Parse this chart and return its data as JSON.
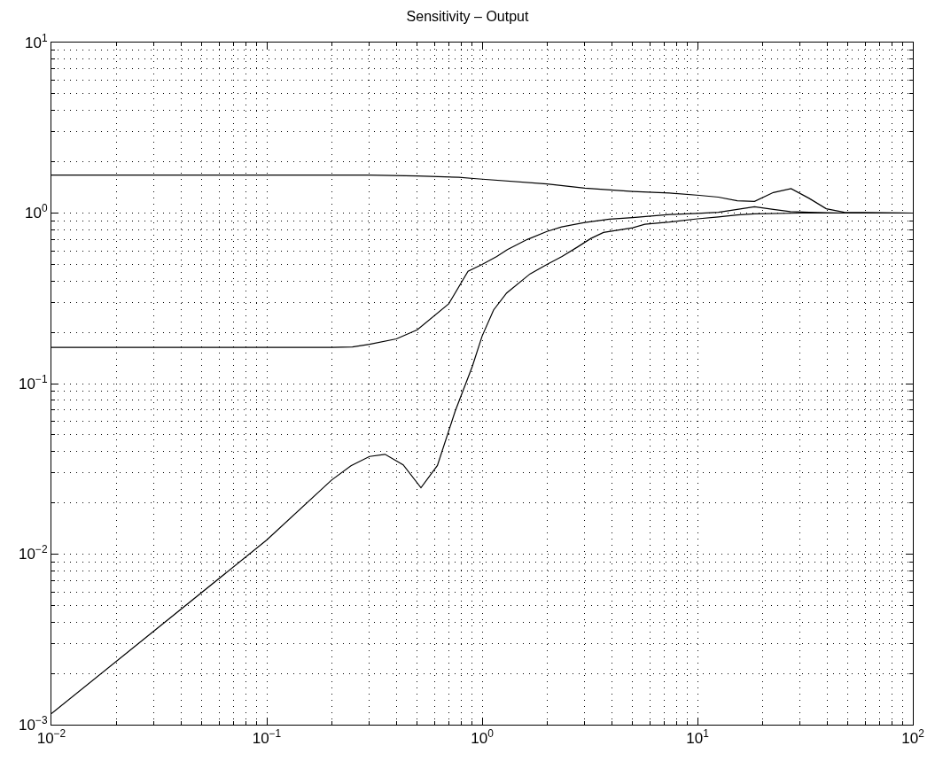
{
  "chart_data": {
    "type": "line",
    "title": "Sensitivity – Output",
    "series": [
      {
        "color": "#000000",
        "x": [
          0.01,
          0.1,
          0.3,
          0.5,
          0.78,
          0.94,
          2,
          3,
          5,
          7.4,
          10.2,
          12.5,
          15.3,
          18.4,
          22.5,
          27.2,
          33,
          39.6,
          48,
          100
        ],
        "values": [
          1.67,
          1.67,
          1.67,
          1.65,
          1.62,
          1.59,
          1.48,
          1.4,
          1.34,
          1.31,
          1.27,
          1.24,
          1.18,
          1.17,
          1.32,
          1.39,
          1.22,
          1.06,
          1.01,
          1.0
        ]
      },
      {
        "color": "#000000",
        "x": [
          0.01,
          0.1,
          0.2,
          0.25,
          0.3,
          0.4,
          0.5,
          0.7,
          0.86,
          1.0,
          1.17,
          1.31,
          1.62,
          2,
          2.34,
          3,
          3.9,
          5,
          7.4,
          10,
          12.5,
          15.3,
          18.4,
          22.5,
          27,
          33,
          48,
          100
        ],
        "values": [
          0.163,
          0.163,
          0.163,
          0.164,
          0.17,
          0.183,
          0.207,
          0.294,
          0.456,
          0.5,
          0.556,
          0.61,
          0.7,
          0.78,
          0.83,
          0.88,
          0.92,
          0.94,
          0.98,
          0.995,
          1.01,
          1.05,
          1.09,
          1.05,
          1.02,
          1.01,
          1.0,
          1.0
        ]
      },
      {
        "color": "#000000",
        "x": [
          0.01,
          0.1,
          0.2,
          0.246,
          0.3,
          0.354,
          0.43,
          0.52,
          0.62,
          0.75,
          0.9,
          1.0,
          1.13,
          1.3,
          1.67,
          2,
          2.35,
          2.76,
          3.2,
          3.66,
          5,
          5.7,
          7.4,
          10,
          12.5,
          15.3,
          18.4,
          30,
          100
        ],
        "values": [
          0.00116,
          0.0121,
          0.0272,
          0.033,
          0.0374,
          0.0385,
          0.0334,
          0.0245,
          0.0331,
          0.069,
          0.126,
          0.19,
          0.27,
          0.34,
          0.44,
          0.5,
          0.556,
          0.63,
          0.71,
          0.77,
          0.82,
          0.86,
          0.885,
          0.925,
          0.95,
          0.975,
          0.99,
          1.0,
          1.0
        ]
      }
    ],
    "log": "xy",
    "xlim": [
      0.01,
      100
    ],
    "ylim": [
      0.001,
      10
    ],
    "xticks": [
      {
        "value": 0.01,
        "label": "10$^{−2}$"
      },
      {
        "value": 0.1,
        "label": "10$^{−1}$"
      },
      {
        "value": 1,
        "label": "10$^{0}$"
      },
      {
        "value": 10,
        "label": "10$^{1}$"
      },
      {
        "value": 100,
        "label": "10$^{2}$"
      }
    ],
    "yticks": [
      {
        "value": 0.001,
        "label": "10$^{−3}$"
      },
      {
        "value": 0.01,
        "label": "10$^{−2}$"
      },
      {
        "value": 0.1,
        "label": "10$^{−1}$"
      },
      {
        "value": 1,
        "label": "10$^{0}$"
      },
      {
        "value": 10,
        "label": "10$^{1}$"
      }
    ],
    "grid": true,
    "marker": "none",
    "line_style": "solid"
  }
}
